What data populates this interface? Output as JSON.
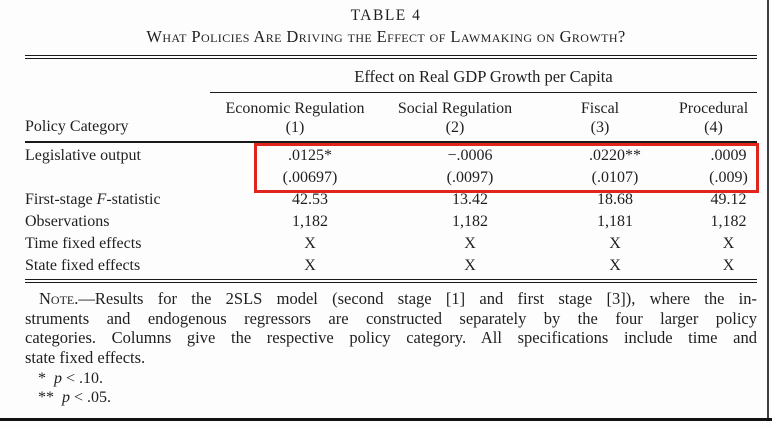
{
  "header": {
    "table_number": "TABLE 4",
    "title": "What Policies Are Driving the Effect of Lawmaking on Growth?",
    "spanner": "Effect on Real GDP Growth per Capita",
    "stub": "Policy Category",
    "columns": [
      {
        "label": "Economic Regulation",
        "number": "(1)"
      },
      {
        "label": "Social Regulation",
        "number": "(2)"
      },
      {
        "label": "Fiscal",
        "number": "(3)"
      },
      {
        "label": "Procedural",
        "number": "(4)"
      }
    ]
  },
  "body": {
    "legislative_output": {
      "label": "Legislative output",
      "coef": [
        ".0125*",
        "−.0006",
        ".0220**",
        ".0009"
      ],
      "se": [
        "(.00697)",
        "(.0097)",
        "(.0107)",
        "(.009)"
      ]
    },
    "f_statistic": {
      "label_prefix": "First-stage ",
      "label_italic": "F",
      "label_suffix": "-statistic",
      "values": [
        "42.53",
        "13.42",
        "18.68",
        "49.12"
      ]
    },
    "observations": {
      "label": "Observations",
      "values": [
        "1,182",
        "1,182",
        "1,181",
        "1,182"
      ]
    },
    "time_fixed_effects": {
      "label": "Time fixed effects",
      "values": [
        "X",
        "X",
        "X",
        "X"
      ]
    },
    "state_fixed_effects": {
      "label": "State fixed effects",
      "values": [
        "X",
        "X",
        "X",
        "X"
      ]
    }
  },
  "note": {
    "label": "Note",
    "sep": ".—",
    "line1": "Results for the 2SLS model (second stage [1] and first stage [3]), where the in-",
    "line2": "struments and endogenous regressors are constructed separately by the four larger policy",
    "line3": "categories. Columns give the respective policy category. All specifications include time and",
    "line4": "state fixed effects."
  },
  "footnotes": [
    {
      "marker": "*",
      "var": "p",
      "rest": "< .10."
    },
    {
      "marker": "**",
      "var": "p",
      "rest": "< .05."
    }
  ],
  "highlight": {
    "color": "#e0261c"
  }
}
